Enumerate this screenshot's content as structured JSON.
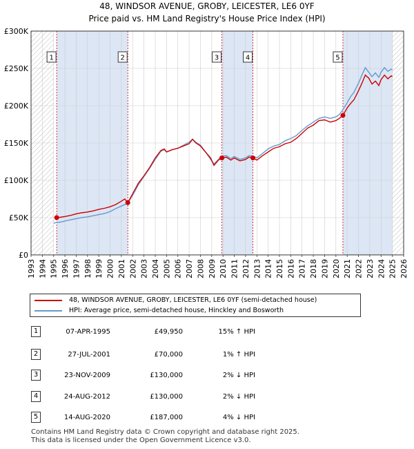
{
  "title_line1": "48, WINDSOR AVENUE, GROBY, LEICESTER, LE6 0YF",
  "title_line2": "Price paid vs. HM Land Registry's House Price Index (HPI)",
  "colors": {
    "property": "#cc0000",
    "hpi": "#6699cc",
    "shade": "#dce6f5",
    "vline": "#cc0000",
    "grid": "#cccccc"
  },
  "chart_data": {
    "type": "line",
    "ylabel": "",
    "xlabel": "",
    "ylim": [
      0,
      300000
    ],
    "xlim": [
      1993,
      2026
    ],
    "y_ticks": [
      0,
      50000,
      100000,
      150000,
      200000,
      250000,
      300000
    ],
    "y_tick_labels": [
      "£0",
      "£50K",
      "£100K",
      "£150K",
      "£200K",
      "£250K",
      "£300K"
    ],
    "x_ticks": [
      1993,
      1994,
      1995,
      1996,
      1997,
      1998,
      1999,
      2000,
      2001,
      2002,
      2003,
      2004,
      2005,
      2006,
      2007,
      2008,
      2009,
      2010,
      2011,
      2012,
      2013,
      2014,
      2015,
      2016,
      2017,
      2018,
      2019,
      2020,
      2021,
      2022,
      2023,
      2024,
      2025,
      2026
    ],
    "hatch_before": 1995.0,
    "hatch_after": 2025.0,
    "shaded_ranges": [
      [
        1995.27,
        2001.57
      ],
      [
        2009.9,
        2012.65
      ],
      [
        2020.62,
        2025.0
      ]
    ],
    "series": [
      {
        "name": "48, WINDSOR AVENUE, GROBY, LEICESTER, LE6 0YF (semi-detached house)",
        "x": [
          1995.27,
          1995.6,
          1996.0,
          1996.5,
          1997.0,
          1997.5,
          1998.0,
          1998.5,
          1999.0,
          1999.5,
          2000.0,
          2000.5,
          2001.0,
          2001.3,
          2001.57,
          2002.0,
          2002.5,
          2003.0,
          2003.5,
          2004.0,
          2004.5,
          2004.8,
          2005.0,
          2005.5,
          2006.0,
          2006.5,
          2007.0,
          2007.3,
          2007.6,
          2008.0,
          2008.5,
          2008.9,
          2009.2,
          2009.6,
          2009.9,
          2010.3,
          2010.7,
          2011.0,
          2011.5,
          2012.0,
          2012.3,
          2012.65,
          2013.0,
          2013.5,
          2014.0,
          2014.5,
          2015.0,
          2015.5,
          2016.0,
          2016.5,
          2017.0,
          2017.5,
          2018.0,
          2018.5,
          2019.0,
          2019.5,
          2020.0,
          2020.3,
          2020.62,
          2021.0,
          2021.3,
          2021.6,
          2022.0,
          2022.3,
          2022.6,
          2022.9,
          2023.2,
          2023.5,
          2023.8,
          2024.0,
          2024.3,
          2024.6,
          2024.9,
          2025.0
        ],
        "y": [
          49950,
          50500,
          51500,
          53000,
          55000,
          56500,
          57500,
          59000,
          61000,
          62500,
          64500,
          67500,
          72000,
          75000,
          70000,
          82000,
          96000,
          106000,
          117000,
          130000,
          140000,
          142000,
          138000,
          141000,
          143000,
          146000,
          149000,
          155000,
          150000,
          146000,
          137000,
          130000,
          120000,
          127000,
          130000,
          131000,
          127000,
          130000,
          126000,
          128000,
          131000,
          130000,
          127000,
          133000,
          138000,
          143000,
          145000,
          149000,
          151000,
          156000,
          163000,
          170000,
          174000,
          180000,
          181000,
          178000,
          180000,
          183000,
          187000,
          197000,
          203000,
          208000,
          220000,
          230000,
          241000,
          237000,
          229000,
          233000,
          227000,
          235000,
          241000,
          236000,
          240000,
          239000
        ]
      },
      {
        "name": "HPI: Average price, semi-detached house, Hinckley and Bosworth",
        "x": [
          1995.0,
          1995.27,
          1995.6,
          1996.0,
          1996.5,
          1997.0,
          1997.5,
          1998.0,
          1998.5,
          1999.0,
          1999.5,
          2000.0,
          2000.5,
          2001.0,
          2001.57,
          2002.0,
          2002.5,
          2003.0,
          2003.5,
          2004.0,
          2004.5,
          2004.8,
          2005.0,
          2005.5,
          2006.0,
          2006.5,
          2007.0,
          2007.3,
          2007.6,
          2008.0,
          2008.5,
          2008.9,
          2009.2,
          2009.6,
          2009.9,
          2010.3,
          2010.7,
          2011.0,
          2011.5,
          2012.0,
          2012.3,
          2012.65,
          2013.0,
          2013.5,
          2014.0,
          2014.5,
          2015.0,
          2015.5,
          2016.0,
          2016.5,
          2017.0,
          2017.5,
          2018.0,
          2018.5,
          2019.0,
          2019.5,
          2020.0,
          2020.3,
          2020.62,
          2021.0,
          2021.3,
          2021.6,
          2022.0,
          2022.3,
          2022.6,
          2022.9,
          2023.2,
          2023.5,
          2023.8,
          2024.0,
          2024.3,
          2024.6,
          2024.9,
          2025.0
        ],
        "y": [
          42500,
          43400,
          44000,
          45500,
          47000,
          48500,
          50000,
          51000,
          52500,
          54000,
          55500,
          58000,
          62000,
          65500,
          69300,
          80000,
          94000,
          105000,
          116000,
          128000,
          139000,
          141000,
          138000,
          141000,
          143000,
          147000,
          151000,
          155000,
          151000,
          147000,
          137000,
          128000,
          122000,
          128000,
          132600,
          133000,
          129000,
          132000,
          128000,
          130000,
          133000,
          132600,
          130000,
          136000,
          142000,
          146000,
          148000,
          153000,
          156000,
          160000,
          167000,
          173000,
          178000,
          183000,
          185000,
          183000,
          185000,
          188000,
          194800,
          204000,
          212000,
          218000,
          230000,
          241000,
          251000,
          245000,
          239000,
          244000,
          238000,
          245000,
          251000,
          246000,
          249000,
          248000
        ]
      }
    ],
    "sales": [
      {
        "num": "1",
        "x": 1995.27,
        "y": 49950
      },
      {
        "num": "2",
        "x": 2001.57,
        "y": 70000
      },
      {
        "num": "3",
        "x": 2009.9,
        "y": 130000
      },
      {
        "num": "4",
        "x": 2012.65,
        "y": 130000
      },
      {
        "num": "5",
        "x": 2020.62,
        "y": 187000
      }
    ]
  },
  "legend": {
    "property_label": "48, WINDSOR AVENUE, GROBY, LEICESTER, LE6 0YF (semi-detached house)",
    "hpi_label": "HPI: Average price, semi-detached house, Hinckley and Bosworth"
  },
  "transactions": [
    {
      "num": "1",
      "date": "07-APR-1995",
      "price": "£49,950",
      "hpi": "15% ↑ HPI"
    },
    {
      "num": "2",
      "date": "27-JUL-2001",
      "price": "£70,000",
      "hpi": "1% ↑ HPI"
    },
    {
      "num": "3",
      "date": "23-NOV-2009",
      "price": "£130,000",
      "hpi": "2% ↓ HPI"
    },
    {
      "num": "4",
      "date": "24-AUG-2012",
      "price": "£130,000",
      "hpi": "2% ↓ HPI"
    },
    {
      "num": "5",
      "date": "14-AUG-2020",
      "price": "£187,000",
      "hpi": "4% ↓ HPI"
    }
  ],
  "footer_line1": "Contains HM Land Registry data © Crown copyright and database right 2025.",
  "footer_line2": "This data is licensed under the Open Government Licence v3.0."
}
